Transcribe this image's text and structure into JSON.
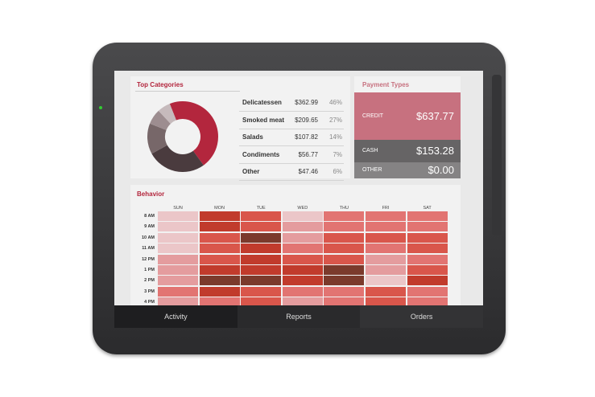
{
  "top_categories": {
    "title": "Top Categories",
    "rows": [
      {
        "name": "Delicatessen",
        "amount": "$362.99",
        "share": "46%"
      },
      {
        "name": "Smoked meat",
        "amount": "$209.65",
        "share": "27%"
      },
      {
        "name": "Salads",
        "amount": "$107.82",
        "share": "14%"
      },
      {
        "name": "Condiments",
        "amount": "$56.77",
        "share": "7%"
      },
      {
        "name": "Other",
        "amount": "$47.46",
        "share": "6%"
      }
    ],
    "colors": [
      "#b3263d",
      "#4a3b3e",
      "#776769",
      "#9d8d90",
      "#c6babc"
    ]
  },
  "payment_types": {
    "title": "Payment Types",
    "rows": [
      {
        "label": "CREDIT",
        "amount": "$637.77",
        "color": "#c7717f"
      },
      {
        "label": "CASH",
        "amount": "$153.28",
        "color": "#666465"
      },
      {
        "label": "OTHER",
        "amount": "$0.00",
        "color": "#858384"
      }
    ]
  },
  "behavior": {
    "title": "Behavior",
    "days": [
      "SUN",
      "MON",
      "TUE",
      "WED",
      "THU",
      "FRI",
      "SAT"
    ],
    "hours": [
      "8 AM",
      "9 AM",
      "10 AM",
      "11 AM",
      "12 PM",
      "1 PM",
      "2 PM",
      "3 PM",
      "4 PM"
    ],
    "palette": [
      "#ebc6c8",
      "#e49c9e",
      "#e27472",
      "#d9564b",
      "#c13b2c",
      "#7b3a2c"
    ],
    "levels": [
      [
        0,
        4,
        3,
        0,
        2,
        2,
        2
      ],
      [
        0,
        4,
        3,
        1,
        2,
        2,
        2
      ],
      [
        0,
        3,
        5,
        1,
        3,
        3,
        3
      ],
      [
        0,
        3,
        4,
        2,
        3,
        2,
        3
      ],
      [
        1,
        3,
        4,
        3,
        3,
        1,
        2
      ],
      [
        1,
        4,
        4,
        4,
        5,
        1,
        3
      ],
      [
        1,
        5,
        5,
        4,
        5,
        0,
        4
      ],
      [
        2,
        4,
        3,
        2,
        2,
        3,
        2
      ],
      [
        1,
        2,
        3,
        1,
        2,
        3,
        2
      ]
    ]
  },
  "tabs": [
    "Activity",
    "Reports",
    "Orders"
  ]
}
